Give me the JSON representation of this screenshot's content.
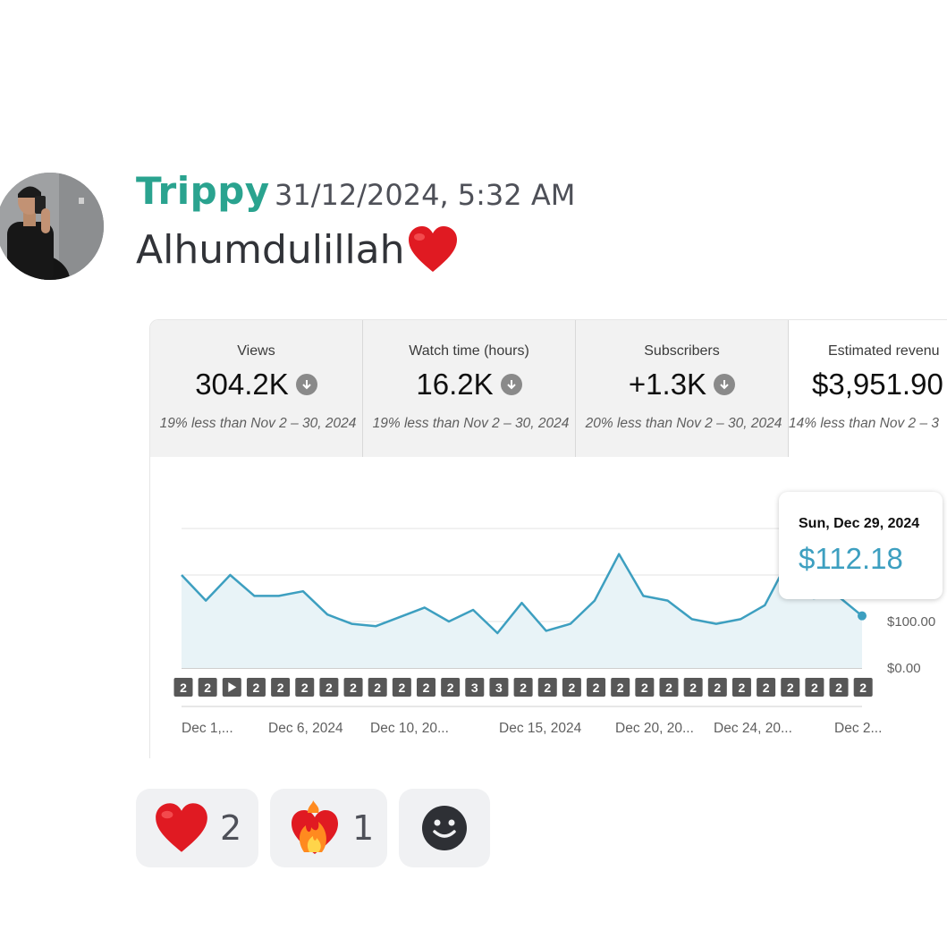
{
  "message": {
    "author": "Trippy",
    "timestamp": "31/12/2024, 5:32 AM",
    "text": "Alhumdulillah",
    "emoji": "heart-emoji",
    "author_color": "#2aa38f"
  },
  "analytics": {
    "metrics": [
      {
        "title": "Views",
        "value": "304.2K",
        "compare": "19% less than Nov 2 – 30, 2024"
      },
      {
        "title": "Watch time (hours)",
        "value": "16.2K",
        "compare": "19% less than Nov 2 – 30, 2024"
      },
      {
        "title": "Subscribers",
        "value": "+1.3K",
        "compare": "20% less than Nov 2 – 30, 2024"
      },
      {
        "title": "Estimated revenu",
        "value": "$3,951.90",
        "compare": "14% less than Nov 2 – 3"
      }
    ],
    "tooltip": {
      "date": "Sun, Dec 29, 2024",
      "value": "$112.18"
    },
    "markers": [
      "2",
      "2",
      "▶",
      "2",
      "2",
      "2",
      "2",
      "2",
      "2",
      "2",
      "2",
      "2",
      "3",
      "3",
      "2",
      "2",
      "2",
      "2",
      "2",
      "2",
      "2",
      "2",
      "2",
      "2",
      "2",
      "2",
      "2",
      "2",
      "2"
    ]
  },
  "chart_data": {
    "type": "area",
    "x": [
      "Dec 1",
      "Dec 2",
      "Dec 3",
      "Dec 4",
      "Dec 5",
      "Dec 6",
      "Dec 7",
      "Dec 8",
      "Dec 9",
      "Dec 10",
      "Dec 11",
      "Dec 12",
      "Dec 13",
      "Dec 14",
      "Dec 15",
      "Dec 16",
      "Dec 17",
      "Dec 18",
      "Dec 19",
      "Dec 20",
      "Dec 21",
      "Dec 22",
      "Dec 23",
      "Dec 24",
      "Dec 25",
      "Dec 26",
      "Dec 27",
      "Dec 28",
      "Dec 29"
    ],
    "series": [
      {
        "values": [
          200,
          145,
          200,
          155,
          155,
          165,
          115,
          95,
          90,
          110,
          130,
          100,
          125,
          75,
          140,
          80,
          95,
          145,
          245,
          155,
          145,
          105,
          95,
          105,
          135,
          235,
          150,
          155,
          112.18
        ]
      }
    ],
    "y_tick_labels": [
      "$100.00",
      "$0.00"
    ],
    "x_tick_labels": [
      "Dec 1,...",
      "Dec 6, 2024",
      "Dec 10, 20...",
      "Dec 15, 2024",
      "Dec 20, 20...",
      "Dec 24, 20...",
      "Dec 2..."
    ],
    "ylim": [
      0,
      300
    ],
    "grid": true,
    "line_color": "#3d9fc0",
    "fill_color": "#e8f3f7"
  },
  "reactions": [
    {
      "emoji": "heart-emoji",
      "count": "2"
    },
    {
      "emoji": "heart-on-fire-emoji",
      "count": "1"
    },
    {
      "emoji": "add-reaction-icon",
      "count": ""
    }
  ]
}
